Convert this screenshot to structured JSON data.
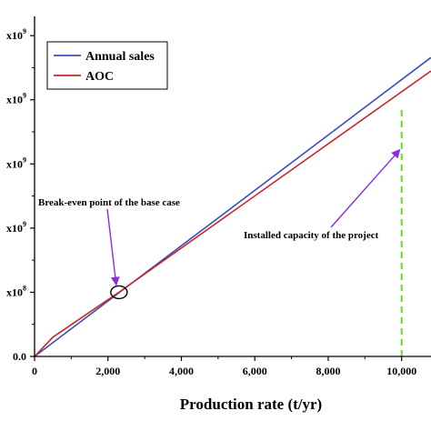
{
  "chart_data": {
    "type": "line",
    "xlabel": "Production rate (t/yr)",
    "ylabel": "",
    "xlim": [
      0,
      10800
    ],
    "ylim": [
      0,
      5.3
    ],
    "x_ticks": [
      {
        "value": 0,
        "label": "0"
      },
      {
        "value": 2000,
        "label": "2,000"
      },
      {
        "value": 4000,
        "label": "4,000"
      },
      {
        "value": 6000,
        "label": "6,000"
      },
      {
        "value": 8000,
        "label": "8,000"
      },
      {
        "value": 10000,
        "label": "10,000"
      }
    ],
    "y_ticks": [
      {
        "value": 0,
        "label": "0.0",
        "exp": ""
      },
      {
        "value": 1,
        "label": "x10",
        "exp": "8"
      },
      {
        "value": 2,
        "label": "x10",
        "exp": "9"
      },
      {
        "value": 3,
        "label": "x10",
        "exp": "9"
      },
      {
        "value": 4,
        "label": "x10",
        "exp": "9"
      },
      {
        "value": 5,
        "label": "x10",
        "exp": "9"
      }
    ],
    "series": [
      {
        "name": "Annual sales",
        "color": "#3a4fb8",
        "x": [
          0,
          10800
        ],
        "y": [
          0,
          4.66
        ]
      },
      {
        "name": "AOC",
        "color": "#c8282a",
        "x": [
          0,
          500,
          1500,
          2300,
          10800
        ],
        "y": [
          0,
          0.3,
          0.69,
          1.0,
          4.45
        ]
      }
    ],
    "legend": {
      "position": "top-left",
      "boxed": true
    },
    "annotations": [
      {
        "id": "break-even",
        "text": "Break-even point of the base case",
        "point": {
          "x": 2300,
          "y": 1.0
        },
        "arrow_color": "#8a2be2"
      },
      {
        "id": "capacity",
        "text": "Installed capacity of the project",
        "point": {
          "x": 10000,
          "y": 3.25
        },
        "arrow_color": "#8a2be2"
      }
    ],
    "reference_lines": [
      {
        "axis": "x",
        "value": 10000,
        "style": "dashed",
        "color": "#66dd22"
      }
    ]
  }
}
